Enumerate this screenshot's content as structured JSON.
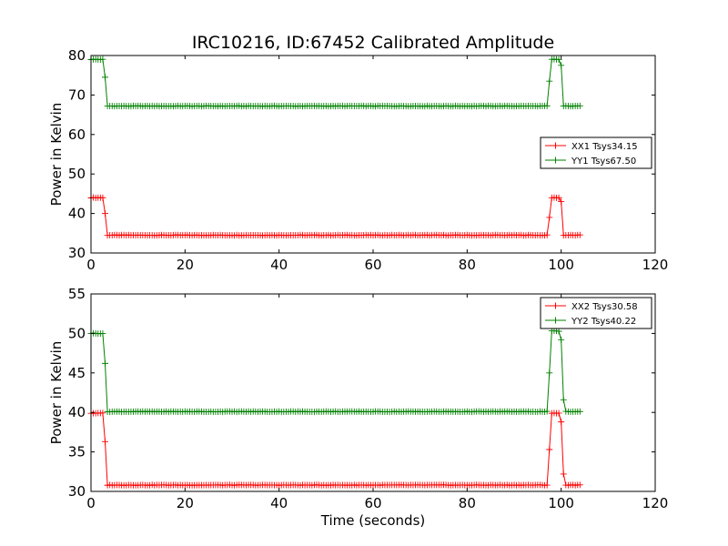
{
  "figure": {
    "title": "IRC10216, ID:67452 Calibrated Amplitude"
  },
  "chart_data": [
    {
      "type": "line",
      "title": "IRC10216, ID:67452 Calibrated Amplitude",
      "xlabel": "",
      "ylabel": "Power in Kelvin",
      "xlim": [
        0,
        120
      ],
      "ylim": [
        30,
        80
      ],
      "xticks": [
        "0",
        "20",
        "40",
        "60",
        "80",
        "100",
        "120"
      ],
      "yticks": [
        "30",
        "40",
        "50",
        "60",
        "70",
        "80"
      ],
      "grid": false,
      "legend_position": "center-right",
      "marker": "+",
      "sample_interval_seconds": 0.5,
      "series": [
        {
          "name": "XX1 Tsys34.15",
          "color": "#ff0000",
          "segments": [
            {
              "x_start": 0,
              "x_end": 2.5,
              "y": 44.0
            },
            {
              "x": 3.0,
              "y": 40.0
            },
            {
              "x_start": 3.5,
              "x_end": 97.0,
              "y": 34.5
            },
            {
              "x": 97.5,
              "y": 39.0
            },
            {
              "x_start": 98.0,
              "x_end": 99.5,
              "y": 44.0
            },
            {
              "x": 100.0,
              "y": 43.0
            },
            {
              "x_start": 100.5,
              "x_end": 104.0,
              "y": 34.5
            }
          ]
        },
        {
          "name": "YY1 Tsys67.50",
          "color": "#008000",
          "segments": [
            {
              "x_start": 0,
              "x_end": 2.5,
              "y": 79.0
            },
            {
              "x": 3.0,
              "y": 74.5
            },
            {
              "x_start": 3.5,
              "x_end": 97.0,
              "y": 67.2
            },
            {
              "x": 97.5,
              "y": 73.5
            },
            {
              "x_start": 98.0,
              "x_end": 99.5,
              "y": 79.0
            },
            {
              "x": 100.0,
              "y": 77.5
            },
            {
              "x_start": 100.5,
              "x_end": 104.0,
              "y": 67.2
            }
          ]
        }
      ]
    },
    {
      "type": "line",
      "title": "",
      "xlabel": "Time (seconds)",
      "ylabel": "Power in Kelvin",
      "xlim": [
        0,
        120
      ],
      "ylim": [
        30,
        55
      ],
      "xticks": [
        "0",
        "20",
        "40",
        "60",
        "80",
        "100",
        "120"
      ],
      "yticks": [
        "30",
        "35",
        "40",
        "45",
        "50",
        "55"
      ],
      "grid": false,
      "legend_position": "top-right",
      "marker": "+",
      "sample_interval_seconds": 0.5,
      "series": [
        {
          "name": "XX2 Tsys30.58",
          "color": "#ff0000",
          "segments": [
            {
              "x_start": 0,
              "x_end": 2.5,
              "y": 39.9
            },
            {
              "x": 3.0,
              "y": 36.3
            },
            {
              "x_start": 3.5,
              "x_end": 97.0,
              "y": 30.8
            },
            {
              "x": 97.5,
              "y": 35.3
            },
            {
              "x_start": 98.0,
              "x_end": 99.5,
              "y": 39.9
            },
            {
              "x": 100.0,
              "y": 38.8
            },
            {
              "x": 100.5,
              "y": 32.2
            },
            {
              "x_start": 101.0,
              "x_end": 104.0,
              "y": 30.8
            }
          ]
        },
        {
          "name": "YY2 Tsys40.22",
          "color": "#008000",
          "segments": [
            {
              "x_start": 0,
              "x_end": 2.5,
              "y": 50.0
            },
            {
              "x": 3.0,
              "y": 46.2
            },
            {
              "x_start": 3.5,
              "x_end": 97.0,
              "y": 40.1
            },
            {
              "x": 97.5,
              "y": 45.0
            },
            {
              "x_start": 98.0,
              "x_end": 99.5,
              "y": 50.3
            },
            {
              "x": 100.0,
              "y": 49.2
            },
            {
              "x": 100.5,
              "y": 41.6
            },
            {
              "x_start": 101.0,
              "x_end": 104.0,
              "y": 40.1
            }
          ]
        }
      ]
    }
  ]
}
